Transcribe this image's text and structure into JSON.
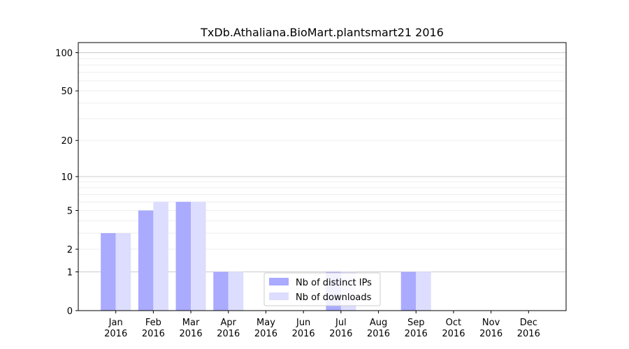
{
  "chart_data": {
    "type": "bar",
    "title": "TxDb.Athaliana.BioMart.plantsmart21 2016",
    "xlabel": "",
    "ylabel": "",
    "categories": [
      [
        "Jan",
        "2016"
      ],
      [
        "Feb",
        "2016"
      ],
      [
        "Mar",
        "2016"
      ],
      [
        "Apr",
        "2016"
      ],
      [
        "May",
        "2016"
      ],
      [
        "Jun",
        "2016"
      ],
      [
        "Jul",
        "2016"
      ],
      [
        "Aug",
        "2016"
      ],
      [
        "Sep",
        "2016"
      ],
      [
        "Oct",
        "2016"
      ],
      [
        "Nov",
        "2016"
      ],
      [
        "Dec",
        "2016"
      ]
    ],
    "series": [
      {
        "name": "Nb of distinct IPs",
        "color": "#aaaaff",
        "values": [
          3,
          5,
          6,
          1,
          0,
          0,
          1,
          0,
          1,
          0,
          0,
          0
        ]
      },
      {
        "name": "Nb of downloads",
        "color": "#ddddff",
        "values": [
          3,
          6,
          6,
          1,
          0,
          0,
          1,
          0,
          1,
          0,
          0,
          0
        ]
      }
    ],
    "yscale": "log(1+y)",
    "ylim": [
      0,
      120
    ],
    "yticks": [
      0,
      1,
      2,
      5,
      10,
      20,
      50,
      100
    ],
    "ytick_labels": [
      "0",
      "1",
      "2",
      "5",
      "10",
      "20",
      "50",
      "100"
    ],
    "grid": true,
    "legend": "bottom-center"
  }
}
